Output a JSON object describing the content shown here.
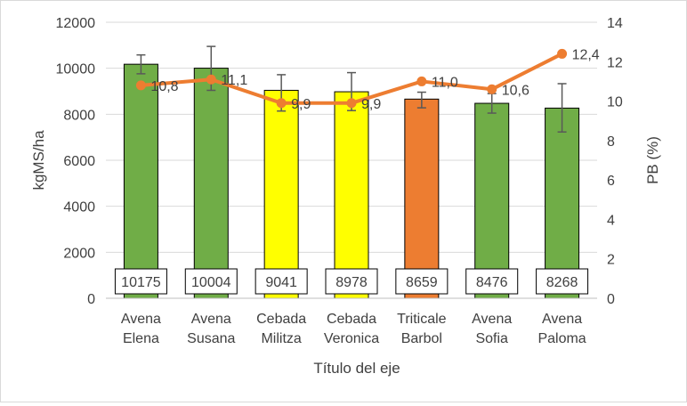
{
  "chart_data": {
    "type": "bar+line",
    "xlabel": "Título del eje",
    "ylabel": "kgMS/ha",
    "y2label": "PB (%)",
    "ylim": [
      0,
      12000
    ],
    "y2lim": [
      0,
      14
    ],
    "yticks": [
      0,
      2000,
      4000,
      6000,
      8000,
      10000,
      12000
    ],
    "y2ticks": [
      0,
      2,
      4,
      6,
      8,
      10,
      12,
      14
    ],
    "grid": true,
    "categories": [
      [
        "Avena",
        "Elena"
      ],
      [
        "Avena",
        "Susana"
      ],
      [
        "Cebada",
        "Militza"
      ],
      [
        "Cebada",
        "Veronica"
      ],
      [
        "Triticale",
        "Barbol"
      ],
      [
        "Avena",
        "Sofia"
      ],
      [
        "Avena",
        "Paloma"
      ]
    ],
    "bars": {
      "name": "kgMS/ha",
      "values": [
        10175,
        10004,
        9041,
        8978,
        8659,
        8476,
        8268
      ],
      "value_labels": [
        "10175",
        "10004",
        "9041",
        "8978",
        "8659",
        "8476",
        "8268"
      ],
      "error_low": [
        9760,
        9040,
        8140,
        8160,
        8280,
        8050,
        7230
      ],
      "error_high": [
        10580,
        10950,
        9720,
        9810,
        8960,
        8900,
        9330
      ],
      "colors": [
        "#70AD47",
        "#70AD47",
        "#FFFF00",
        "#FFFF00",
        "#ED7D31",
        "#70AD47",
        "#70AD47"
      ]
    },
    "line": {
      "name": "PB (%)",
      "values": [
        10.8,
        11.1,
        9.9,
        9.9,
        11.0,
        10.6,
        12.4
      ],
      "labels": [
        "10,8",
        "11,1",
        "9,9",
        "9,9",
        "11,0",
        "10,6",
        "12,4"
      ],
      "color": "#ED7D31"
    }
  }
}
